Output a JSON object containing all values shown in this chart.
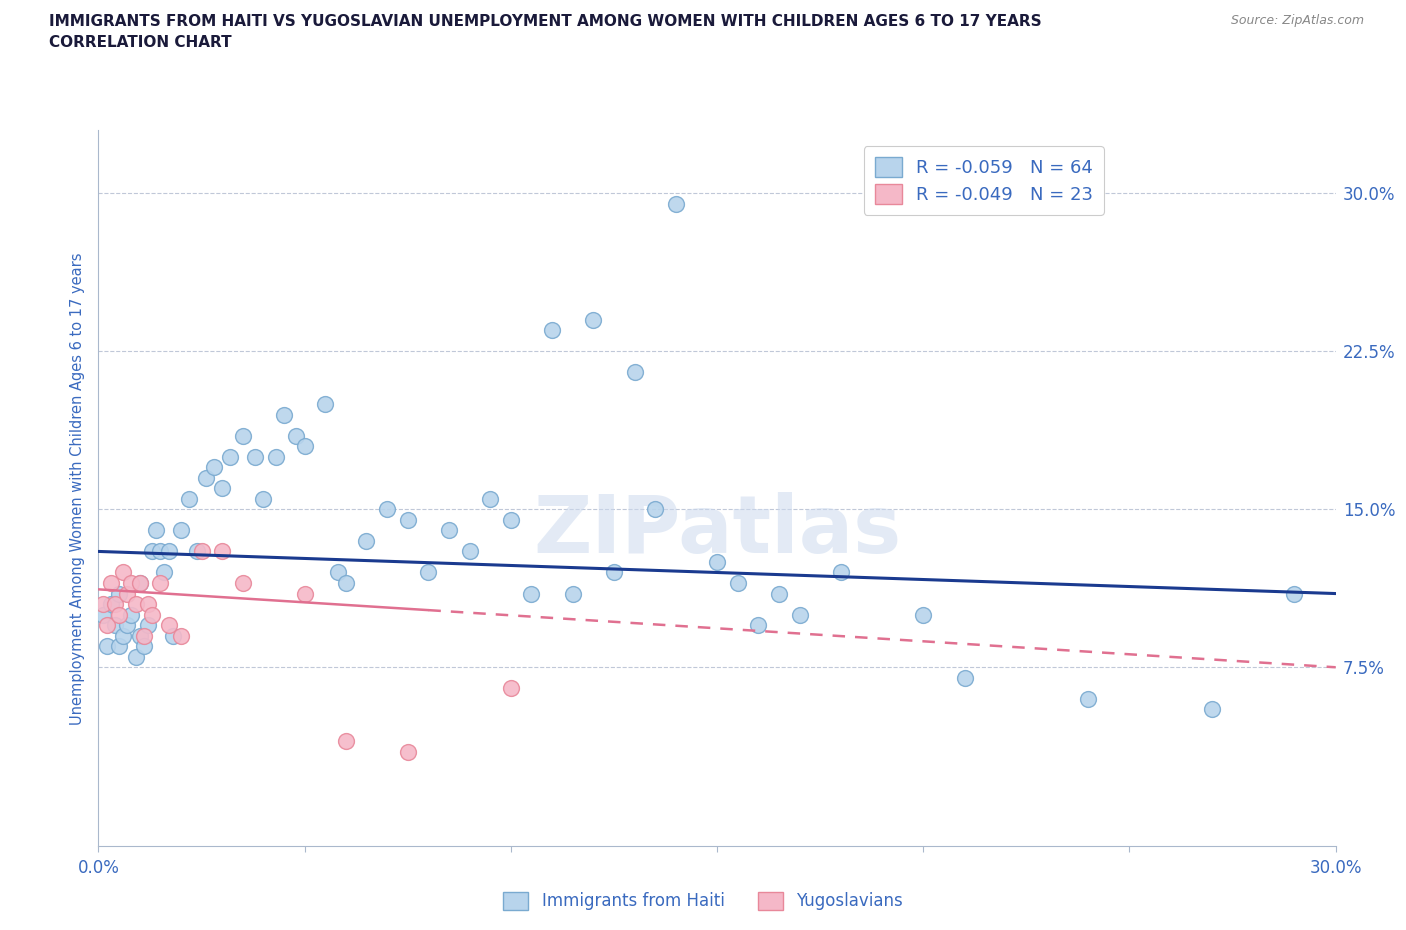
{
  "title_line1": "IMMIGRANTS FROM HAITI VS YUGOSLAVIAN UNEMPLOYMENT AMONG WOMEN WITH CHILDREN AGES 6 TO 17 YEARS",
  "title_line2": "CORRELATION CHART",
  "source_text": "Source: ZipAtlas.com",
  "ylabel": "Unemployment Among Women with Children Ages 6 to 17 years",
  "xlim": [
    0.0,
    0.3
  ],
  "ylim": [
    -0.01,
    0.33
  ],
  "ytick_values": [
    0.075,
    0.15,
    0.225,
    0.3
  ],
  "ytick_labels": [
    "7.5%",
    "15.0%",
    "22.5%",
    "30.0%"
  ],
  "haiti_color": "#b8d4ec",
  "yugoslavian_color": "#f5b8c8",
  "haiti_edge_color": "#7aaad0",
  "yugoslavian_edge_color": "#e8889a",
  "trend_blue_color": "#1a3a8f",
  "trend_pink_color": "#e07090",
  "legend_label1": "R = -0.059   N = 64",
  "legend_label2": "R = -0.049   N = 23",
  "bottom_legend_label1": "Immigrants from Haiti",
  "bottom_legend_label2": "Yugoslavians",
  "watermark": "ZIPatlas",
  "haiti_x": [
    0.001,
    0.002,
    0.003,
    0.004,
    0.005,
    0.005,
    0.006,
    0.007,
    0.008,
    0.009,
    0.01,
    0.01,
    0.011,
    0.012,
    0.013,
    0.014,
    0.015,
    0.016,
    0.017,
    0.018,
    0.02,
    0.022,
    0.024,
    0.026,
    0.028,
    0.03,
    0.032,
    0.035,
    0.038,
    0.04,
    0.043,
    0.045,
    0.048,
    0.05,
    0.055,
    0.058,
    0.06,
    0.065,
    0.07,
    0.075,
    0.08,
    0.085,
    0.09,
    0.095,
    0.1,
    0.105,
    0.11,
    0.115,
    0.12,
    0.125,
    0.13,
    0.135,
    0.14,
    0.15,
    0.155,
    0.16,
    0.165,
    0.17,
    0.18,
    0.2,
    0.21,
    0.24,
    0.27,
    0.29
  ],
  "haiti_y": [
    0.1,
    0.085,
    0.105,
    0.095,
    0.085,
    0.11,
    0.09,
    0.095,
    0.1,
    0.08,
    0.115,
    0.09,
    0.085,
    0.095,
    0.13,
    0.14,
    0.13,
    0.12,
    0.13,
    0.09,
    0.14,
    0.155,
    0.13,
    0.165,
    0.17,
    0.16,
    0.175,
    0.185,
    0.175,
    0.155,
    0.175,
    0.195,
    0.185,
    0.18,
    0.2,
    0.12,
    0.115,
    0.135,
    0.15,
    0.145,
    0.12,
    0.14,
    0.13,
    0.155,
    0.145,
    0.11,
    0.235,
    0.11,
    0.24,
    0.12,
    0.215,
    0.15,
    0.295,
    0.125,
    0.115,
    0.095,
    0.11,
    0.1,
    0.12,
    0.1,
    0.07,
    0.06,
    0.055,
    0.11
  ],
  "yugoslavian_x": [
    0.001,
    0.002,
    0.003,
    0.004,
    0.005,
    0.006,
    0.007,
    0.008,
    0.009,
    0.01,
    0.011,
    0.012,
    0.013,
    0.015,
    0.017,
    0.02,
    0.025,
    0.03,
    0.035,
    0.05,
    0.06,
    0.075,
    0.1
  ],
  "yugoslavian_y": [
    0.105,
    0.095,
    0.115,
    0.105,
    0.1,
    0.12,
    0.11,
    0.115,
    0.105,
    0.115,
    0.09,
    0.105,
    0.1,
    0.115,
    0.095,
    0.09,
    0.13,
    0.13,
    0.115,
    0.11,
    0.04,
    0.035,
    0.065
  ],
  "haiti_trend_x": [
    0.0,
    0.3
  ],
  "haiti_trend_y": [
    0.13,
    0.11
  ],
  "yugoslavian_trend_x": [
    0.0,
    0.3
  ],
  "yugoslavian_trend_y": [
    0.112,
    0.075
  ]
}
